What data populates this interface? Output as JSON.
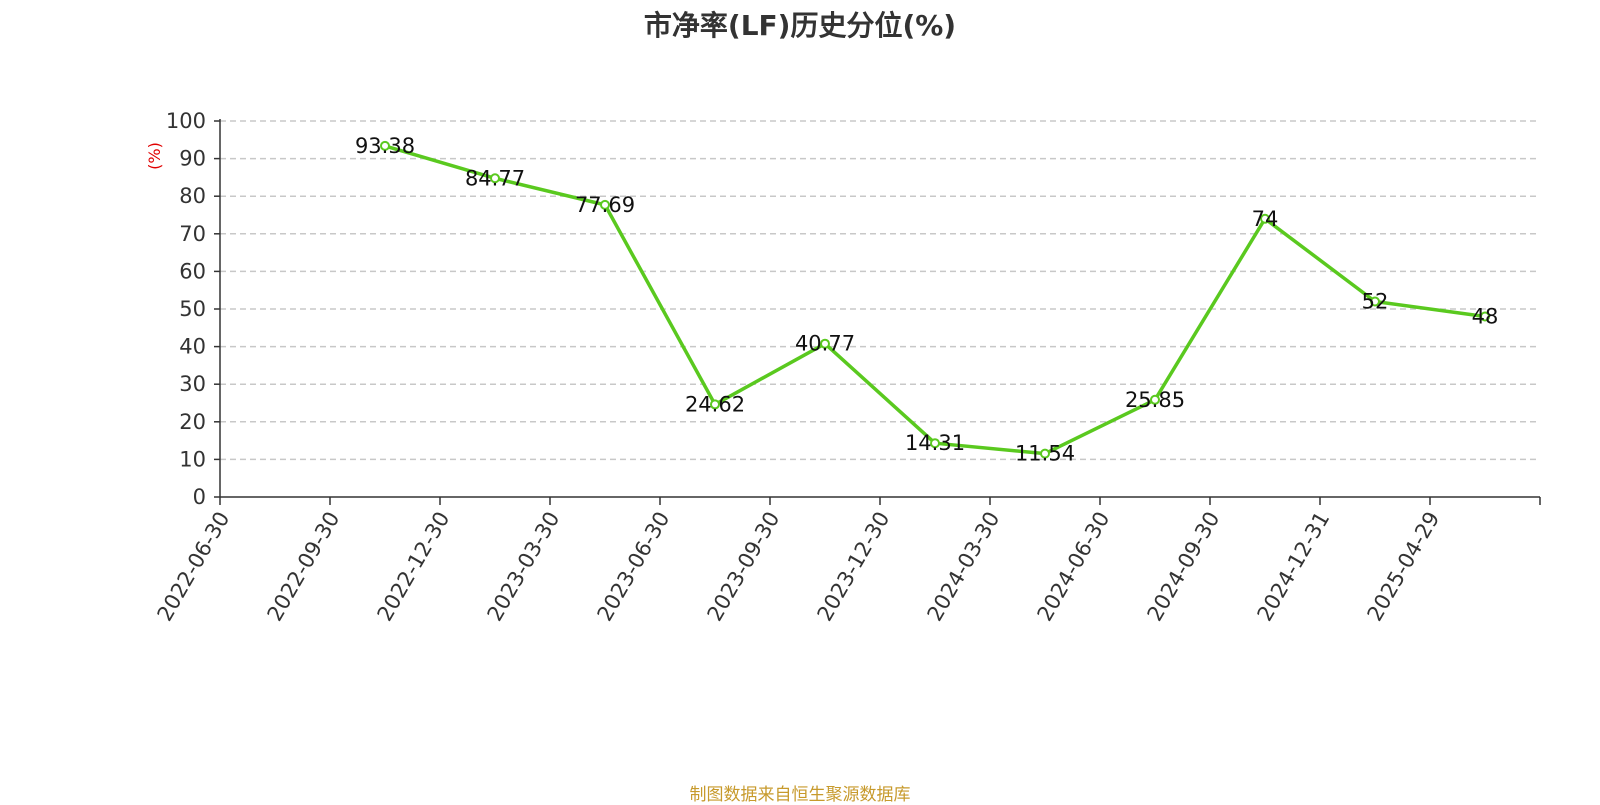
{
  "chart_data": {
    "type": "line",
    "title": "市净率(LF)历史分位(%)",
    "ylabel": "(%)",
    "categories": [
      "2022-06-30",
      "2022-09-30",
      "2022-12-30",
      "2023-03-30",
      "2023-06-30",
      "2023-09-30",
      "2023-12-30",
      "2024-03-30",
      "2024-06-30",
      "2024-09-30",
      "2024-12-31",
      "2025-04-29"
    ],
    "series": [
      {
        "values": [
          null,
          93.38,
          84.77,
          77.69,
          24.62,
          40.77,
          14.31,
          11.54,
          25.85,
          74,
          52,
          48
        ]
      }
    ],
    "ylim": [
      0,
      100
    ],
    "yticks": [
      0,
      10,
      20,
      30,
      40,
      50,
      60,
      70,
      80,
      90,
      100
    ],
    "grid": true,
    "line_color": "#5ac91f"
  },
  "source": "制图数据来自恒生聚源数据库"
}
